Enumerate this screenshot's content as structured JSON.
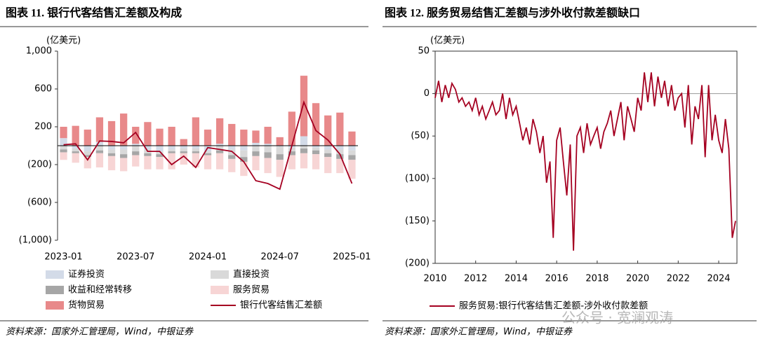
{
  "chart_data": [
    {
      "type": "bar",
      "stacked": true,
      "title": "图表 11. 银行代客结售汇差额及构成",
      "y_label": "(亿美元)",
      "source": "资料来源：国家外汇管理局，Wind，中银证券",
      "categories": [
        "2023-01",
        null,
        null,
        null,
        null,
        null,
        "2023-07",
        null,
        null,
        null,
        null,
        null,
        "2024-01",
        null,
        null,
        null,
        null,
        null,
        "2024-07",
        null,
        null,
        null,
        null,
        null,
        "2025-01"
      ],
      "ylim": [
        -1000,
        1000
      ],
      "yticks": [
        {
          "value": 1000,
          "label": "1,000"
        },
        600,
        200,
        {
          "value": -200,
          "label": "(200)"
        },
        {
          "value": -600,
          "label": "(600)"
        },
        {
          "value": -1000,
          "label": "(1,000)"
        }
      ],
      "series": [
        {
          "name": "证券投资",
          "color": "#d3dbe8",
          "values": [
            80,
            -30,
            -60,
            40,
            -40,
            -40,
            20,
            -40,
            -60,
            -40,
            -30,
            -30,
            -60,
            20,
            -40,
            -50,
            30,
            20,
            -10,
            -20,
            100,
            -20,
            -40,
            -40,
            -50
          ]
        },
        {
          "name": "直接投资",
          "color": "#d9d9d9",
          "values": [
            -40,
            -30,
            -40,
            -50,
            -40,
            -50,
            -60,
            -40,
            -30,
            -20,
            -30,
            -30,
            -20,
            -50,
            -60,
            -70,
            -60,
            -70,
            -80,
            -40,
            -30,
            -30,
            -40,
            -50,
            -50
          ]
        },
        {
          "name": "收益和经常转移",
          "color": "#a6a6a6",
          "values": [
            -30,
            -20,
            -20,
            -30,
            -30,
            -40,
            -40,
            -30,
            -30,
            -20,
            -20,
            -20,
            -20,
            -30,
            -40,
            -50,
            -50,
            -60,
            -60,
            -40,
            -50,
            -40,
            -40,
            -50,
            -50
          ]
        },
        {
          "name": "服务贸易",
          "color": "#f7d5d5",
          "values": [
            -80,
            -100,
            -120,
            -150,
            -150,
            -140,
            -120,
            -140,
            -130,
            -170,
            -120,
            -150,
            -150,
            -170,
            -140,
            -150,
            -150,
            -160,
            -180,
            -150,
            -160,
            -160,
            -170,
            -150,
            -200
          ]
        },
        {
          "name": "货物贸易",
          "color": "#e8898a",
          "values": [
            120,
            210,
            170,
            260,
            260,
            340,
            180,
            250,
            180,
            200,
            70,
            300,
            170,
            270,
            230,
            170,
            130,
            180,
            90,
            360,
            640,
            450,
            320,
            350,
            150
          ]
        },
        {
          "name": "银行代客结售汇差额",
          "color": "#a50021",
          "type": "line",
          "values": [
            10,
            20,
            -150,
            50,
            45,
            30,
            140,
            -60,
            -60,
            -200,
            -110,
            -230,
            -20,
            -40,
            -60,
            -170,
            -370,
            -400,
            -460,
            0,
            460,
            160,
            60,
            -90,
            -400
          ]
        }
      ]
    },
    {
      "type": "line",
      "title": "图表 12. 服务贸易结售汇差额与涉外收付款差额缺口",
      "y_label": "(亿美元)",
      "source": "资料来源：国家外汇管理局，Wind，中银证券",
      "xlim": [
        2010,
        2024.9
      ],
      "xticks": [
        2010,
        2012,
        2014,
        2016,
        2018,
        2020,
        2022,
        2024
      ],
      "ylim": [
        -200,
        50
      ],
      "yticks": [
        50,
        0,
        {
          "value": -50,
          "label": "(50)"
        },
        {
          "value": -100,
          "label": "(100)"
        },
        {
          "value": -150,
          "label": "(150)"
        },
        {
          "value": -200,
          "label": "(200)"
        }
      ],
      "x": [
        2010,
        2010.17,
        2010.33,
        2010.5,
        2010.67,
        2010.83,
        2011,
        2011.17,
        2011.33,
        2011.5,
        2011.67,
        2011.83,
        2012,
        2012.17,
        2012.33,
        2012.5,
        2012.67,
        2012.83,
        2013,
        2013.17,
        2013.33,
        2013.5,
        2013.67,
        2013.83,
        2014,
        2014.17,
        2014.33,
        2014.5,
        2014.67,
        2014.83,
        2015,
        2015.17,
        2015.33,
        2015.5,
        2015.67,
        2015.83,
        2016,
        2016.17,
        2016.33,
        2016.5,
        2016.67,
        2016.83,
        2017,
        2017.17,
        2017.33,
        2017.5,
        2017.67,
        2017.83,
        2018,
        2018.17,
        2018.33,
        2018.5,
        2018.67,
        2018.83,
        2019,
        2019.17,
        2019.33,
        2019.5,
        2019.67,
        2019.83,
        2020,
        2020.17,
        2020.33,
        2020.5,
        2020.67,
        2020.83,
        2021,
        2021.17,
        2021.33,
        2021.5,
        2021.67,
        2021.83,
        2022,
        2022.17,
        2022.33,
        2022.5,
        2022.67,
        2022.83,
        2023,
        2023.17,
        2023.33,
        2023.5,
        2023.67,
        2023.83,
        2024,
        2024.17,
        2024.33,
        2024.5,
        2024.67,
        2024.83
      ],
      "series": [
        {
          "name": "服务贸易:银行代客结售汇差额-涉外收付款差额",
          "color": "#a50021",
          "values": [
            -5,
            15,
            -10,
            10,
            -5,
            12,
            5,
            -10,
            -5,
            -15,
            -10,
            -20,
            -5,
            -25,
            -15,
            -30,
            -20,
            -10,
            -25,
            -20,
            0,
            -30,
            -5,
            -25,
            -15,
            -35,
            -55,
            -40,
            -60,
            -30,
            -45,
            -70,
            -50,
            -105,
            -80,
            -170,
            -55,
            -40,
            -80,
            -120,
            -60,
            -185,
            -50,
            -40,
            -70,
            -35,
            -60,
            -50,
            -40,
            -65,
            -45,
            -35,
            -20,
            -50,
            -30,
            -10,
            -55,
            -15,
            -30,
            -45,
            -5,
            -20,
            25,
            -10,
            25,
            -15,
            20,
            -5,
            15,
            -15,
            10,
            -20,
            -5,
            0,
            -40,
            10,
            -60,
            -15,
            -30,
            10,
            -75,
            10,
            -55,
            -25,
            -55,
            -70,
            -30,
            -65,
            -170,
            -150
          ]
        }
      ]
    }
  ],
  "watermark": "公众号 · 宽澜观涛"
}
